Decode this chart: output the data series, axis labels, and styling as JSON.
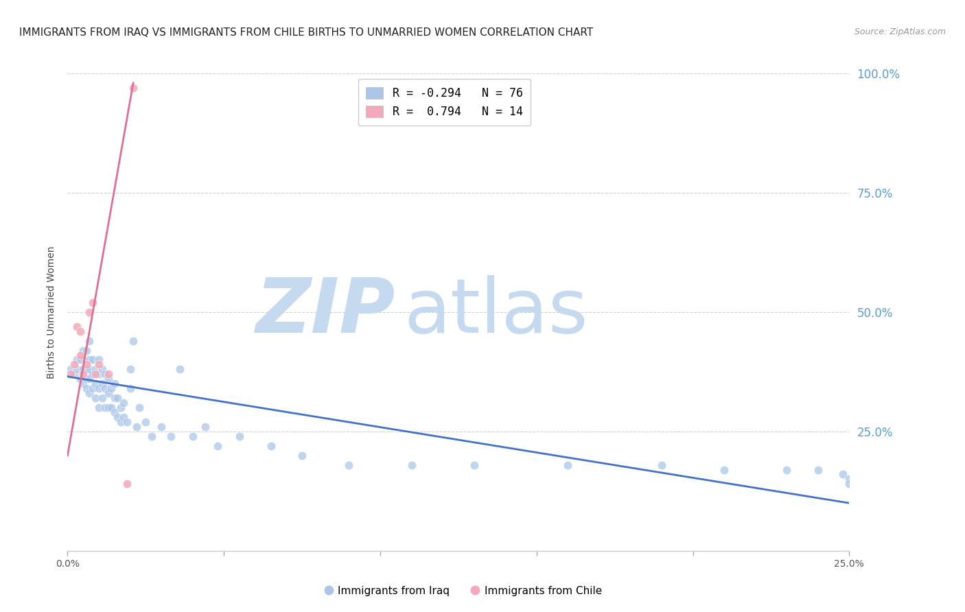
{
  "title": "IMMIGRANTS FROM IRAQ VS IMMIGRANTS FROM CHILE BIRTHS TO UNMARRIED WOMEN CORRELATION CHART",
  "source_text": "Source: ZipAtlas.com",
  "ylabel": "Births to Unmarried Women",
  "x_min": 0.0,
  "x_max": 0.25,
  "y_min": 0.0,
  "y_max": 1.0,
  "yticks": [
    0.0,
    0.25,
    0.5,
    0.75,
    1.0
  ],
  "ytick_labels": [
    "",
    "25.0%",
    "50.0%",
    "75.0%",
    "100.0%"
  ],
  "xticks": [
    0.0,
    0.05,
    0.1,
    0.15,
    0.2,
    0.25
  ],
  "xtick_labels": [
    "0.0%",
    "",
    "",
    "",
    "",
    "25.0%"
  ],
  "legend_iraq_r": "-0.294",
  "legend_iraq_n": "76",
  "legend_chile_r": "0.794",
  "legend_chile_n": "14",
  "iraq_color": "#adc6e8",
  "chile_color": "#f2aaba",
  "iraq_line_color": "#4472c4",
  "chile_line_color": "#e07090",
  "watermark_zip_color": "#c5d9ef",
  "watermark_atlas_color": "#c5d9ef",
  "title_fontsize": 11,
  "source_fontsize": 9,
  "axis_label_fontsize": 10,
  "right_tick_color": "#5b9bd5",
  "background_color": "#ffffff",
  "iraq_scatter_x": [
    0.001,
    0.002,
    0.003,
    0.003,
    0.004,
    0.004,
    0.005,
    0.005,
    0.005,
    0.006,
    0.006,
    0.006,
    0.006,
    0.007,
    0.007,
    0.007,
    0.007,
    0.007,
    0.008,
    0.008,
    0.008,
    0.009,
    0.009,
    0.009,
    0.01,
    0.01,
    0.01,
    0.01,
    0.011,
    0.011,
    0.011,
    0.012,
    0.012,
    0.012,
    0.013,
    0.013,
    0.013,
    0.014,
    0.014,
    0.015,
    0.015,
    0.015,
    0.016,
    0.016,
    0.017,
    0.017,
    0.018,
    0.018,
    0.019,
    0.02,
    0.02,
    0.021,
    0.022,
    0.023,
    0.025,
    0.027,
    0.03,
    0.033,
    0.036,
    0.04,
    0.044,
    0.048,
    0.055,
    0.065,
    0.075,
    0.09,
    0.11,
    0.13,
    0.16,
    0.19,
    0.21,
    0.23,
    0.24,
    0.248,
    0.25,
    0.25
  ],
  "iraq_scatter_y": [
    0.38,
    0.37,
    0.38,
    0.4,
    0.36,
    0.4,
    0.35,
    0.38,
    0.42,
    0.34,
    0.36,
    0.38,
    0.42,
    0.33,
    0.36,
    0.38,
    0.4,
    0.44,
    0.34,
    0.37,
    0.4,
    0.32,
    0.35,
    0.38,
    0.3,
    0.34,
    0.37,
    0.4,
    0.32,
    0.35,
    0.38,
    0.3,
    0.34,
    0.37,
    0.3,
    0.33,
    0.36,
    0.3,
    0.34,
    0.29,
    0.32,
    0.35,
    0.28,
    0.32,
    0.27,
    0.3,
    0.28,
    0.31,
    0.27,
    0.34,
    0.38,
    0.44,
    0.26,
    0.3,
    0.27,
    0.24,
    0.26,
    0.24,
    0.38,
    0.24,
    0.26,
    0.22,
    0.24,
    0.22,
    0.2,
    0.18,
    0.18,
    0.18,
    0.18,
    0.18,
    0.17,
    0.17,
    0.17,
    0.16,
    0.15,
    0.14
  ],
  "chile_scatter_x": [
    0.001,
    0.002,
    0.003,
    0.004,
    0.004,
    0.005,
    0.006,
    0.007,
    0.008,
    0.009,
    0.01,
    0.013,
    0.019,
    0.021
  ],
  "chile_scatter_y": [
    0.37,
    0.39,
    0.47,
    0.41,
    0.46,
    0.37,
    0.39,
    0.5,
    0.52,
    0.37,
    0.39,
    0.37,
    0.14,
    0.97
  ],
  "iraq_trendline_x": [
    0.0,
    0.25
  ],
  "iraq_trendline_y": [
    0.365,
    0.1
  ],
  "chile_trendline_x": [
    0.0,
    0.021
  ],
  "chile_trendline_y": [
    0.2,
    0.98
  ]
}
